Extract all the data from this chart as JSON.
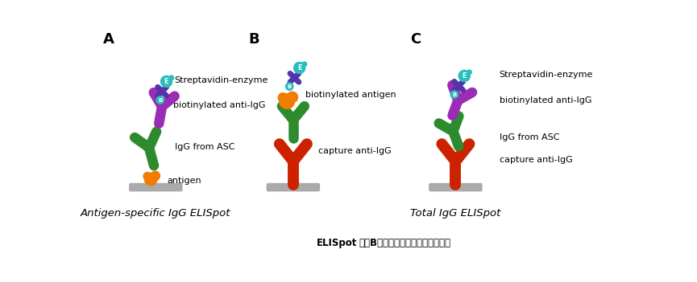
{
  "panel_A_label": "A",
  "panel_B_label": "B",
  "panel_C_label": "C",
  "panel_A_title": "Antigen-specific IgG ELISpot",
  "panel_C_title": "Total IgG ELISpot",
  "colors": {
    "teal": "#29BDBD",
    "purple": "#9B2CB5",
    "green": "#2D8B2D",
    "red": "#CC2200",
    "orange": "#F07D00",
    "gray": "#AAAAAA",
    "dark_purple": "#5533AA"
  },
  "labels_A": {
    "streptavidin": "Streptavidin-enzyme",
    "biotinylated": "biotinylated anti-IgG",
    "IgG": "IgG from ASC",
    "antigen": "antigen"
  },
  "labels_B": {
    "biotinylated": "biotinylated antigen",
    "capture": "capture anti-IgG"
  },
  "labels_C": {
    "streptavidin": "Streptavidin-enzyme",
    "biotinylated": "biotinylated anti-IgG",
    "IgG": "IgG from ASC",
    "capture": "capture anti-IgG"
  },
  "caption": "ELISpot检测B细胞不同方法的原理示意图。"
}
